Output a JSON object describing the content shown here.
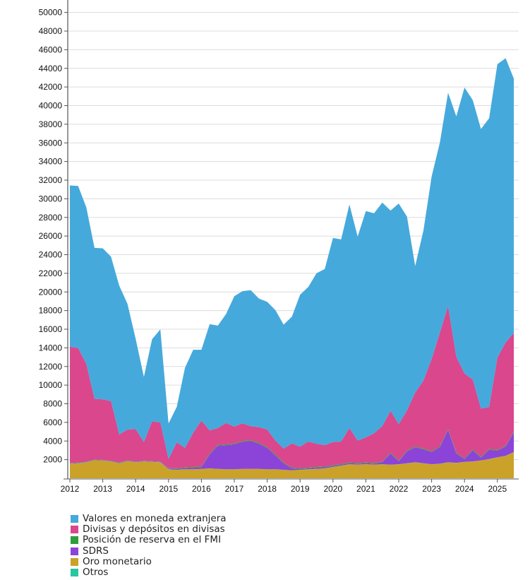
{
  "chart_data": {
    "type": "area",
    "stacked": true,
    "title": "",
    "xlabel": "",
    "ylabel": "",
    "ylim": [
      0,
      51000
    ],
    "xlim": [
      2011.95,
      2025.5
    ],
    "yticks": [
      2000,
      4000,
      6000,
      8000,
      10000,
      12000,
      14000,
      16000,
      18000,
      20000,
      22000,
      24000,
      26000,
      28000,
      30000,
      32000,
      34000,
      36000,
      38000,
      40000,
      42000,
      44000,
      46000,
      48000,
      50000
    ],
    "ytick_labels": [
      "2000",
      "4000",
      "6000",
      "8000",
      "10000",
      "12000",
      "14000",
      "16000",
      "18000",
      "20000",
      "22000",
      "24000",
      "26000",
      "28000",
      "30000",
      "32000",
      "34000",
      "36000",
      "38000",
      "40000",
      "42000",
      "44000",
      "46000",
      "48000",
      "50000"
    ],
    "xticks": [
      2012,
      2013,
      2014,
      2015,
      2016,
      2017,
      2018,
      2019,
      2020,
      2021,
      2022,
      2023,
      2024,
      2025
    ],
    "xtick_labels": [
      "2012",
      "2013",
      "2014",
      "2015",
      "2016",
      "2017",
      "2018",
      "2019",
      "2020",
      "2021",
      "2022",
      "2023",
      "2024",
      "2025"
    ],
    "grid": "horizontal",
    "legend_position": "bottom-left",
    "x": [
      2012.0,
      2012.25,
      2012.5,
      2012.75,
      2013.0,
      2013.25,
      2013.5,
      2013.75,
      2014.0,
      2014.25,
      2014.5,
      2014.75,
      2015.0,
      2015.25,
      2015.5,
      2015.75,
      2016.0,
      2016.25,
      2016.5,
      2016.75,
      2017.0,
      2017.25,
      2017.5,
      2017.75,
      2018.0,
      2018.25,
      2018.5,
      2018.75,
      2019.0,
      2019.25,
      2019.5,
      2019.75,
      2020.0,
      2020.25,
      2020.5,
      2020.75,
      2021.0,
      2021.25,
      2021.5,
      2021.75,
      2022.0,
      2022.25,
      2022.5,
      2022.75,
      2023.0,
      2023.25,
      2023.5,
      2023.75,
      2024.0,
      2024.25,
      2024.5,
      2024.75,
      2025.0,
      2025.25,
      2025.5
    ],
    "series": [
      {
        "name": "Oro monetario",
        "color": "#caa22a",
        "values": [
          1550,
          1600,
          1700,
          1950,
          1900,
          1800,
          1600,
          1850,
          1700,
          1800,
          1750,
          1700,
          950,
          900,
          950,
          950,
          1000,
          1050,
          1000,
          950,
          950,
          1000,
          1000,
          1000,
          950,
          950,
          900,
          850,
          900,
          950,
          1000,
          1050,
          1200,
          1350,
          1500,
          1450,
          1500,
          1450,
          1500,
          1450,
          1500,
          1600,
          1700,
          1600,
          1500,
          1550,
          1700,
          1650,
          1750,
          1800,
          1900,
          2050,
          2250,
          2400,
          2800
        ]
      },
      {
        "name": "Otros",
        "color": "#26c6a0",
        "values": [
          10,
          10,
          10,
          10,
          10,
          10,
          10,
          10,
          10,
          10,
          10,
          10,
          10,
          10,
          10,
          10,
          10,
          10,
          10,
          10,
          10,
          10,
          10,
          10,
          10,
          10,
          10,
          10,
          10,
          10,
          10,
          10,
          10,
          10,
          10,
          10,
          10,
          10,
          10,
          10,
          10,
          10,
          10,
          10,
          10,
          10,
          10,
          10,
          10,
          10,
          10,
          10,
          10,
          10,
          10
        ]
      },
      {
        "name": "SDRS",
        "color": "#8c44d8",
        "values": [
          40,
          40,
          40,
          40,
          40,
          40,
          40,
          40,
          40,
          40,
          40,
          40,
          80,
          100,
          120,
          150,
          200,
          1500,
          2500,
          2600,
          2700,
          2900,
          3000,
          2700,
          2300,
          1500,
          700,
          200,
          100,
          100,
          120,
          120,
          100,
          100,
          100,
          100,
          100,
          100,
          200,
          1200,
          300,
          1300,
          1600,
          1500,
          1300,
          1800,
          3500,
          1000,
          300,
          1200,
          300,
          1000,
          700,
          1000,
          2100
        ]
      },
      {
        "name": "Posición de reserva en el FMI",
        "color": "#2e9e3a",
        "values": [
          30,
          30,
          30,
          30,
          30,
          30,
          30,
          30,
          30,
          30,
          30,
          30,
          40,
          60,
          80,
          80,
          80,
          80,
          80,
          80,
          80,
          80,
          80,
          80,
          80,
          80,
          80,
          80,
          80,
          80,
          80,
          80,
          80,
          80,
          80,
          80,
          80,
          80,
          80,
          80,
          80,
          80,
          80,
          80,
          80,
          80,
          80,
          80,
          80,
          80,
          80,
          80,
          80,
          80,
          80
        ]
      },
      {
        "name": "Divisas y depósitos en divisas",
        "color": "#da478c",
        "values": [
          12500,
          12300,
          10500,
          6500,
          6500,
          6400,
          3000,
          3300,
          3500,
          2000,
          4300,
          4200,
          1000,
          2800,
          2100,
          3700,
          4900,
          2500,
          1800,
          2300,
          1800,
          1900,
          1500,
          1700,
          1900,
          1500,
          1500,
          2600,
          2300,
          2800,
          2500,
          2300,
          2500,
          2400,
          3700,
          2400,
          2700,
          3200,
          3800,
          4500,
          3900,
          4300,
          5800,
          7300,
          9900,
          12200,
          13200,
          10300,
          9100,
          7500,
          5200,
          4500,
          9900,
          11100,
          10600
        ]
      },
      {
        "name": "Valores en moneda extranjera",
        "color": "#46a9db",
        "values": [
          17300,
          17400,
          16800,
          16200,
          16200,
          15500,
          16000,
          13500,
          9700,
          7000,
          8800,
          10000,
          3800,
          3800,
          8600,
          8900,
          7600,
          11400,
          11000,
          11700,
          14000,
          14200,
          14600,
          13800,
          13700,
          14000,
          13300,
          13600,
          16300,
          16600,
          18300,
          18900,
          21900,
          21700,
          24000,
          21900,
          24300,
          23600,
          24000,
          21500,
          23700,
          20800,
          13600,
          16100,
          19600,
          20400,
          22900,
          25800,
          30700,
          30000,
          30000,
          31000,
          31500,
          30500,
          27300
        ]
      }
    ]
  },
  "legend": {
    "items": [
      {
        "label": "Valores en moneda extranjera",
        "color": "#46a9db"
      },
      {
        "label": "Divisas y depósitos en divisas",
        "color": "#da478c"
      },
      {
        "label": "Posición de reserva en el FMI",
        "color": "#2e9e3a"
      },
      {
        "label": "SDRS",
        "color": "#8c44d8"
      },
      {
        "label": "Oro monetario",
        "color": "#caa22a"
      },
      {
        "label": "Otros",
        "color": "#26c6a0"
      }
    ]
  }
}
